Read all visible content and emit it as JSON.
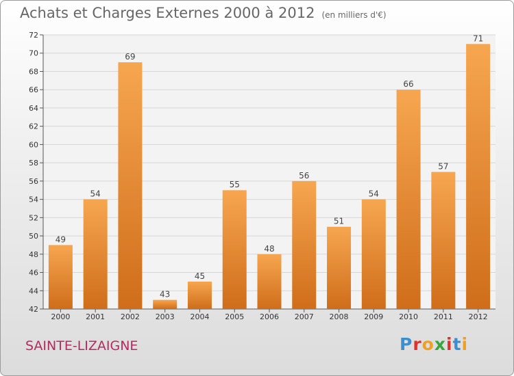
{
  "title": "Achats et Charges Externes 2000 à 2012",
  "subtitle": "(en milliers d'€)",
  "footer": "SAINTE-LIZAIGNE",
  "logo": "Proxiti",
  "colors": {
    "bar_light": "#f7a650",
    "bar_dark": "#cf6d1a",
    "footer": "#b52a5e"
  },
  "chart_data": {
    "type": "bar",
    "title": "Achats et Charges Externes 2000 à 2012",
    "subtitle": "(en milliers d'€)",
    "categories": [
      "2000",
      "2001",
      "2002",
      "2003",
      "2004",
      "2005",
      "2006",
      "2007",
      "2008",
      "2009",
      "2010",
      "2011",
      "2012"
    ],
    "values": [
      49,
      54,
      69,
      43,
      45,
      55,
      48,
      56,
      51,
      54,
      66,
      57,
      71
    ],
    "ylim": [
      42,
      72
    ],
    "yticks": [
      42,
      44,
      46,
      48,
      50,
      52,
      54,
      56,
      58,
      60,
      62,
      64,
      66,
      68,
      70,
      72
    ],
    "grid": true,
    "data_labels": true
  }
}
